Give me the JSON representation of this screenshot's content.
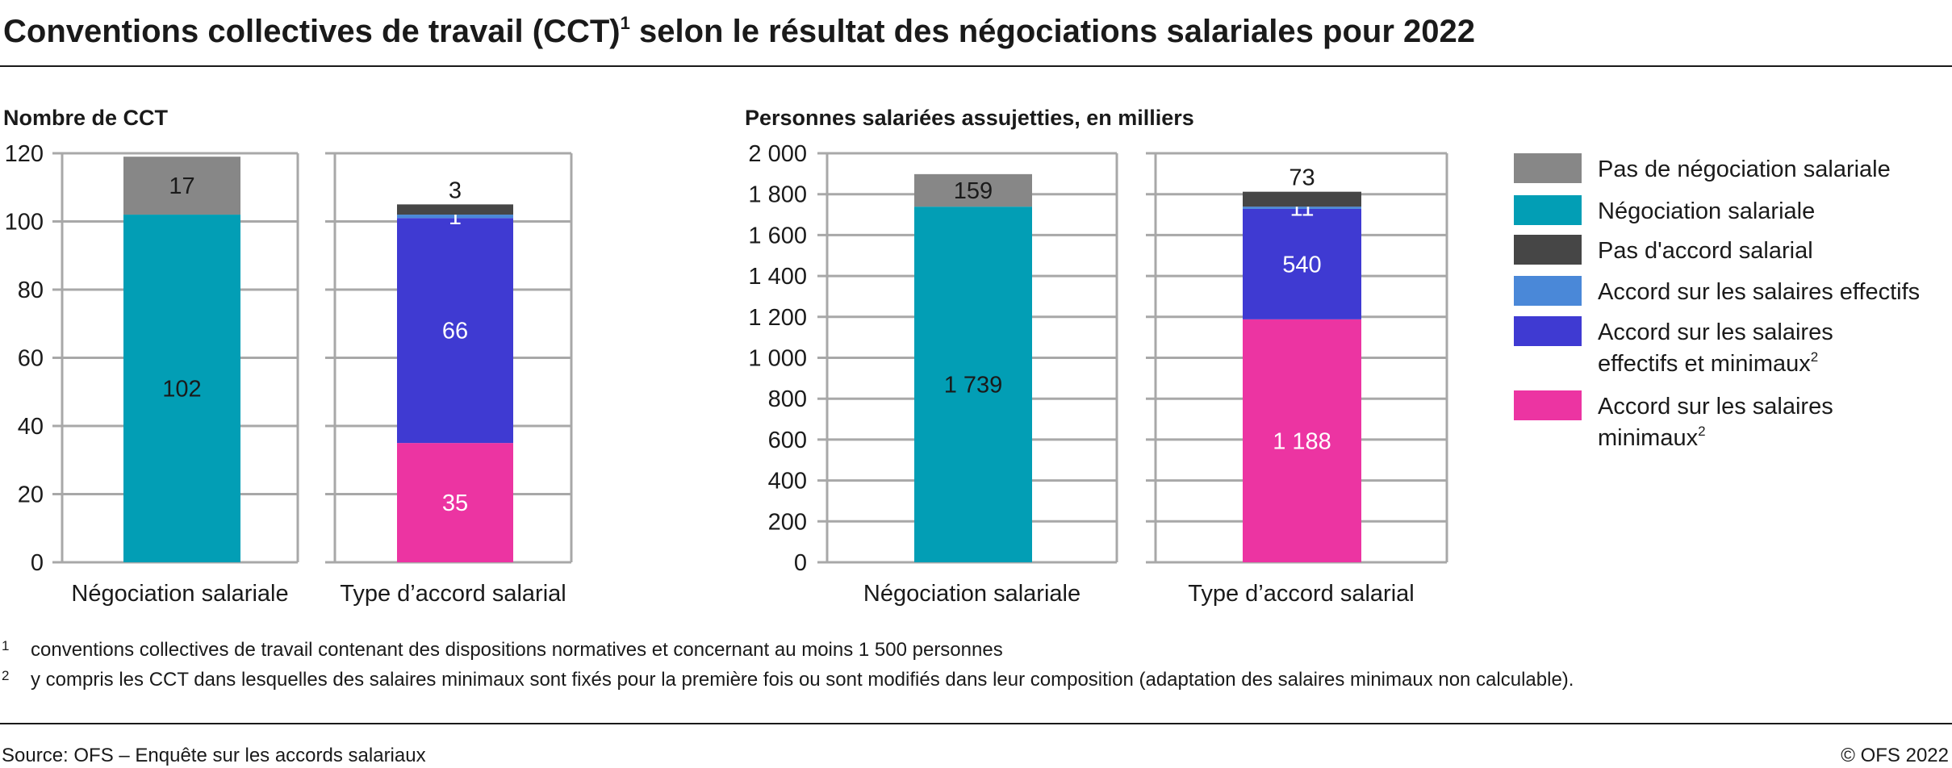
{
  "title": "Conventions collectives de travail (CCT)",
  "title_sup": "1",
  "title_rest": " selon le résultat des négociations salariales pour 2022",
  "colors": {
    "pas_negociation": "#878787",
    "negociation": "#029EB5",
    "pas_accord": "#464646",
    "effectifs": "#4A88D8",
    "effectifs_minimaux": "#3F3AD2",
    "minimaux": "#EC34A2",
    "grid": "#A8A8A8"
  },
  "legend": [
    {
      "key": "pas_negociation",
      "label": "Pas de négociation salariale"
    },
    {
      "key": "negociation",
      "label": "Négociation salariale"
    },
    {
      "key": "pas_accord",
      "label": "Pas d'accord salarial"
    },
    {
      "key": "effectifs",
      "label": "Accord sur les salaires effectifs"
    },
    {
      "key": "effectifs_minimaux",
      "label": "Accord sur les salaires",
      "label2": "effectifs et minimaux",
      "sup": "2"
    },
    {
      "key": "minimaux",
      "label": "Accord sur les salaires",
      "label2": "minimaux",
      "sup": "2"
    }
  ],
  "chart_data": [
    {
      "type": "bar",
      "stacked": true,
      "ylabel": "Nombre de CCT",
      "ylim": [
        0,
        120
      ],
      "yticks": [
        0,
        20,
        40,
        60,
        80,
        100,
        120
      ],
      "ytick_labels": [
        "0",
        "20",
        "40",
        "60",
        "80",
        "100",
        "120"
      ],
      "grid": true,
      "categories": [
        "Négociation salariale",
        "Type d’accord salarial"
      ],
      "stacks": [
        [
          {
            "key": "negociation",
            "value": 102,
            "label": "102",
            "label_color": "#1a1a1a"
          },
          {
            "key": "pas_negociation",
            "value": 17,
            "label": "17",
            "label_color": "#1a1a1a"
          }
        ],
        [
          {
            "key": "minimaux",
            "value": 35,
            "label": "35",
            "label_color": "#ffffff"
          },
          {
            "key": "effectifs_minimaux",
            "value": 66,
            "label": "66",
            "label_color": "#ffffff"
          },
          {
            "key": "effectifs",
            "value": 1,
            "label": "1",
            "label_color": "#ffffff"
          },
          {
            "key": "pas_accord",
            "value": 3,
            "label": "3",
            "label_color": "#1a1a1a",
            "label_above": true
          }
        ]
      ]
    },
    {
      "type": "bar",
      "stacked": true,
      "ylabel": "Personnes salariées assujetties, en milliers",
      "ylim": [
        0,
        2000
      ],
      "yticks": [
        0,
        200,
        400,
        600,
        800,
        1000,
        1200,
        1400,
        1600,
        1800,
        2000
      ],
      "ytick_labels": [
        "0",
        "200",
        "400",
        "600",
        "800",
        "1 000",
        "1 200",
        "1 400",
        "1 600",
        "1 800",
        "2 000"
      ],
      "grid": true,
      "categories": [
        "Négociation salariale",
        "Type d’accord salarial"
      ],
      "stacks": [
        [
          {
            "key": "negociation",
            "value": 1739,
            "label": "1 739",
            "label_color": "#1a1a1a"
          },
          {
            "key": "pas_negociation",
            "value": 159,
            "label": "159",
            "label_color": "#1a1a1a"
          }
        ],
        [
          {
            "key": "minimaux",
            "value": 1188,
            "label": "1 188",
            "label_color": "#ffffff"
          },
          {
            "key": "effectifs_minimaux",
            "value": 540,
            "label": "540",
            "label_color": "#ffffff"
          },
          {
            "key": "effectifs",
            "value": 11,
            "label": "11",
            "label_color": "#ffffff"
          },
          {
            "key": "pas_accord",
            "value": 73,
            "label": "73",
            "label_color": "#1a1a1a",
            "label_above": true
          }
        ]
      ]
    }
  ],
  "footnotes": [
    {
      "mark": "1",
      "text": "conventions collectives de travail contenant des dispositions normatives et concernant au moins 1 500 personnes"
    },
    {
      "mark": "2",
      "text": "y compris les CCT dans lesquelles des salaires minimaux sont fixés pour la première fois ou sont modifiés dans leur composition (adaptation des salaires minimaux non calculable)."
    }
  ],
  "source": "Source: OFS – Enquête sur les accords salariaux",
  "copyright": "© OFS 2022"
}
